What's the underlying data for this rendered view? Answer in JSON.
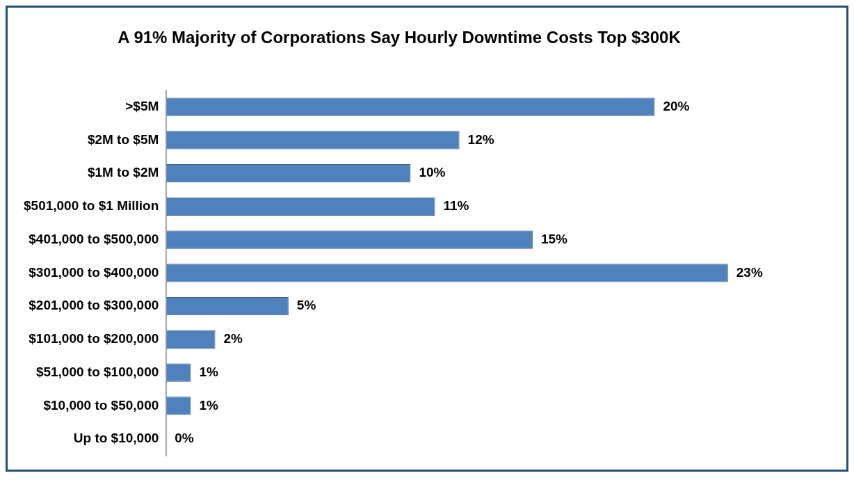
{
  "chart_data": {
    "type": "bar",
    "orientation": "horizontal",
    "title": "A 91% Majority of Corporations Say Hourly Downtime Costs Top $300K",
    "categories": [
      ">$5M",
      "$2M to $5M",
      "$1M to $2M",
      "$501,000 to $1 Million",
      "$401,000 to $500,000",
      "$301,000 to $400,000",
      "$201,000 to $300,000",
      "$101,000 to $200,000",
      "$51,000 to $100,000",
      "$10,000 to $50,000",
      "Up to $10,000"
    ],
    "values": [
      20,
      12,
      10,
      11,
      15,
      23,
      5,
      2,
      1,
      1,
      0
    ],
    "value_labels": [
      "20%",
      "12%",
      "10%",
      "11%",
      "15%",
      "23%",
      "5%",
      "2%",
      "1%",
      "1%",
      "0%"
    ],
    "color": "#4f81bd",
    "tick_labels": "y",
    "grid": false,
    "legend": false
  }
}
